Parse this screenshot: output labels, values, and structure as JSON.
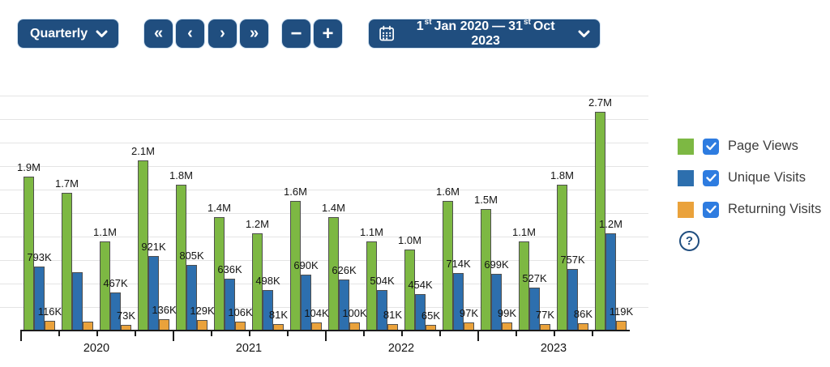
{
  "colors": {
    "button_navy": "#204e7f",
    "checkbox_blue": "#2e7ce0",
    "page_views_green": "#7db843",
    "unique_visits_blue": "#2d6fae",
    "returning_visits_orange": "#eaa23b"
  },
  "toolbar": {
    "period": {
      "label": "Quarterly"
    },
    "nav": {
      "first": "«",
      "prev": "‹",
      "next": "›",
      "last": "»"
    },
    "zoom_out": "−",
    "zoom_in": "+",
    "date_range": {
      "start_day": "1",
      "start_suffix": "st",
      "start_rest": "Jan 2020",
      "separator": "—",
      "end_day": "31",
      "end_suffix": "st",
      "end_rest": "Oct 2023"
    }
  },
  "legend": {
    "items": [
      {
        "label": "Page Views",
        "color": "#7db843",
        "checked": true
      },
      {
        "label": "Unique Visits",
        "color": "#2d6fae",
        "checked": true
      },
      {
        "label": "Returning Visits",
        "color": "#eaa23b",
        "checked": true
      }
    ],
    "help_label": "?"
  },
  "chart_data": {
    "type": "bar",
    "title": "",
    "xlabel": "",
    "ylabel": "",
    "grid": true,
    "legend_position": "right",
    "ylim": [
      0,
      2900000
    ],
    "x_groups": [
      "2020",
      "2021",
      "2022",
      "2023"
    ],
    "categories": [
      "2020 Q1",
      "2020 Q2",
      "2020 Q3",
      "2020 Q4",
      "2021 Q1",
      "2021 Q2",
      "2021 Q3",
      "2021 Q4",
      "2022 Q1",
      "2022 Q2",
      "2022 Q3",
      "2022 Q4",
      "2023 Q1",
      "2023 Q2",
      "2023 Q3",
      "2023 Q4"
    ],
    "series": [
      {
        "name": "Page Views",
        "color": "#7db843",
        "values": [
          1900000,
          1700000,
          1100000,
          2100000,
          1800000,
          1400000,
          1200000,
          1600000,
          1400000,
          1100000,
          1000000,
          1600000,
          1500000,
          1100000,
          1800000,
          2700000
        ],
        "labels": [
          "1.9M",
          "1.7M",
          "1.1M",
          "2.1M",
          "1.8M",
          "1.4M",
          "1.2M",
          "1.6M",
          "1.4M",
          "1.1M",
          "1.0M",
          "1.6M",
          "1.5M",
          "1.1M",
          "1.8M",
          "2.7M"
        ]
      },
      {
        "name": "Unique Visits",
        "color": "#2d6fae",
        "values": [
          793000,
          715000,
          467000,
          921000,
          805000,
          636000,
          498000,
          690000,
          626000,
          504000,
          454000,
          714000,
          699000,
          527000,
          757000,
          1200000
        ],
        "labels": [
          "793K",
          "",
          "467K",
          "921K",
          "805K",
          "636K",
          "498K",
          "690K",
          "626K",
          "504K",
          "454K",
          "714K",
          "699K",
          "527K",
          "757K",
          "1.2M"
        ]
      },
      {
        "name": "Returning Visits",
        "color": "#eaa23b",
        "values": [
          116000,
          105000,
          73000,
          136000,
          129000,
          106000,
          81000,
          104000,
          100000,
          81000,
          65000,
          97000,
          99000,
          77000,
          86000,
          119000
        ],
        "labels": [
          "116K",
          "",
          "73K",
          "136K",
          "129K",
          "106K",
          "81K",
          "104K",
          "100K",
          "81K",
          "65K",
          "97K",
          "99K",
          "77K",
          "86K",
          "119K"
        ]
      }
    ]
  }
}
